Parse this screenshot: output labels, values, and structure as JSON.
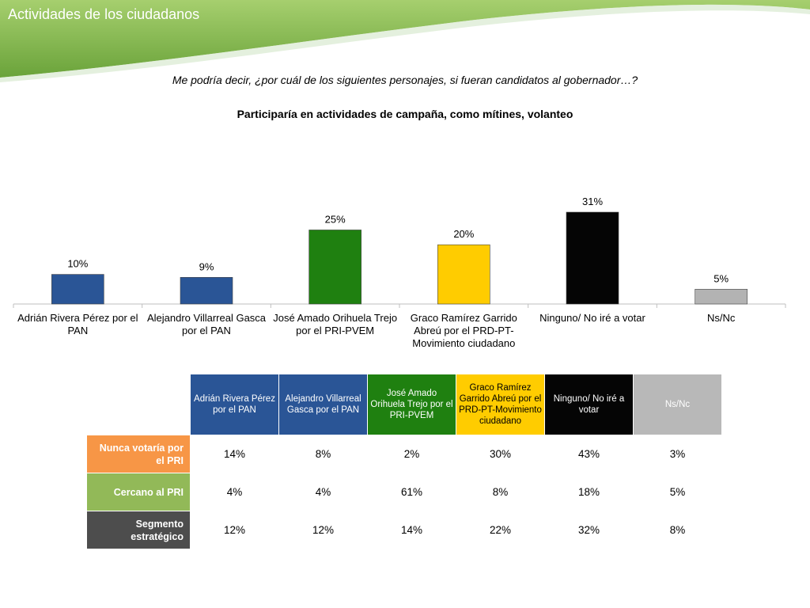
{
  "slide": {
    "title": "Actividades de los ciudadanos",
    "question": "Me podría decir, ¿por cuál de los siguientes personajes, si fueran candidatos al gobernador…?",
    "subtitle": "Participaría en actividades de campaña, como mítines, volanteo"
  },
  "colors": {
    "header_green": "#6aa33a",
    "header_green_light": "#a6cf6e",
    "axis": "#bfbfbf"
  },
  "chart_data": {
    "type": "bar",
    "title": "Participaría en actividades de campaña, como mítines, volanteo",
    "categories": [
      "Adrián Rivera Pérez por el PAN",
      "Alejandro Villarreal Gasca por el PAN",
      "José Amado Orihuela Trejo por el PRI-PVEM",
      "Graco Ramírez Garrido Abreú por el PRD-PT-Movimiento ciudadano",
      "Ninguno/ No iré a votar",
      "Ns/Nc"
    ],
    "values": [
      10,
      9,
      25,
      20,
      31,
      5
    ],
    "data_labels": [
      "10%",
      "9%",
      "25%",
      "20%",
      "31%",
      "5%"
    ],
    "bar_colors": [
      "#2a5596",
      "#2a5596",
      "#1f8010",
      "#ffcc00",
      "#050505",
      "#b3b3b3"
    ],
    "ylim": [
      0,
      31
    ],
    "grid": false,
    "legend": "none"
  },
  "table": {
    "columns": [
      {
        "label": "Adrián Rivera Pérez por el PAN",
        "color": "#2a5596"
      },
      {
        "label": "Alejandro Villarreal Gasca por el PAN",
        "color": "#2a5596"
      },
      {
        "label": "José Amado Orihuela Trejo por el PRI-PVEM",
        "color": "#1f8010"
      },
      {
        "label": "Graco Ramírez Garrido Abreú por el PRD-PT-Movimiento ciudadano",
        "color": "#ffcc00"
      },
      {
        "label": "Ninguno/ No iré a votar",
        "color": "#050505"
      },
      {
        "label": "Ns/Nc",
        "color": "#b8b8b8"
      }
    ],
    "rows": [
      {
        "label": "Nunca votaría por el PRI",
        "color": "#f79646",
        "values": [
          "14%",
          "8%",
          "2%",
          "30%",
          "43%",
          "3%"
        ]
      },
      {
        "label": "Cercano al PRI",
        "color": "#92b958",
        "values": [
          "4%",
          "4%",
          "61%",
          "8%",
          "18%",
          "5%"
        ]
      },
      {
        "label": "Segmento estratégico",
        "color": "#4d4d4d",
        "values": [
          "12%",
          "12%",
          "14%",
          "22%",
          "32%",
          "8%"
        ]
      }
    ]
  }
}
